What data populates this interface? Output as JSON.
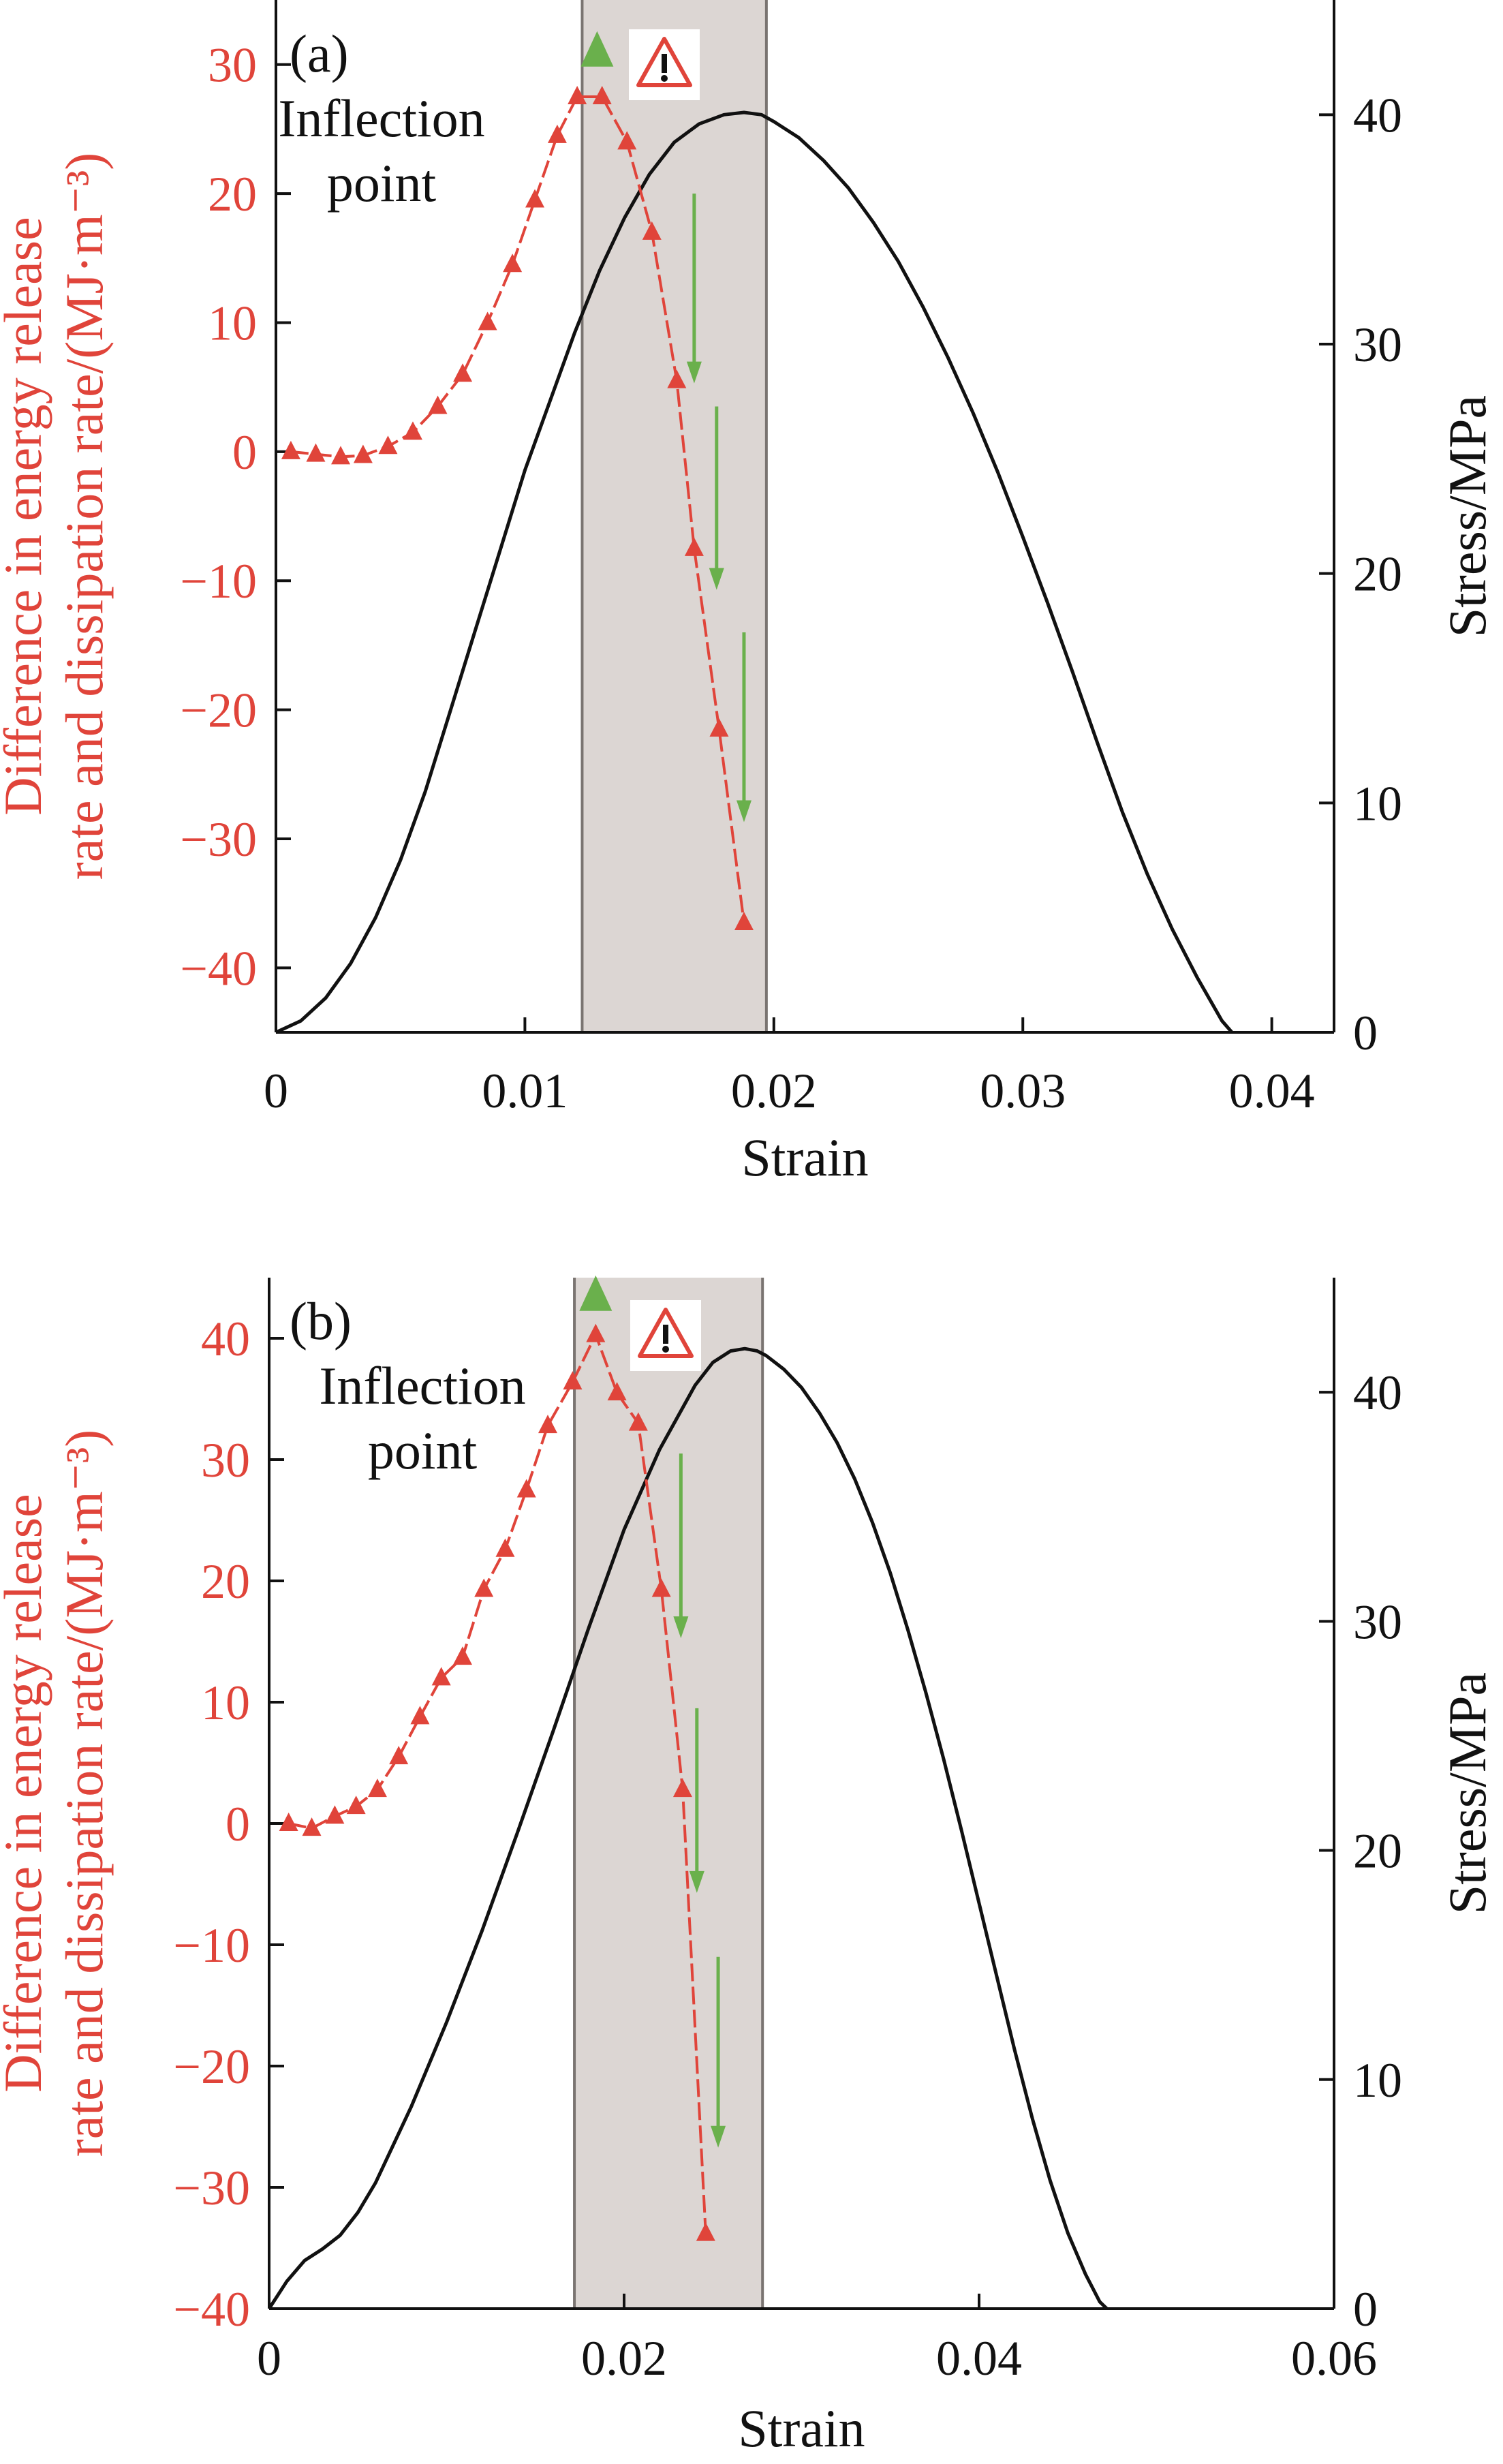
{
  "chart_data": [
    {
      "type": "line",
      "panel_label": "(a)",
      "xlabel": "Strain",
      "ylabel_left_line1": "Difference in energy release",
      "ylabel_left_line2": "rate and dissipation rate/(MJ·m⁻³)",
      "ylabel_right": "Stress/MPa",
      "xlim": [
        0,
        0.0425
      ],
      "ylim_left": [
        -45,
        35
      ],
      "ylim_right": [
        0,
        45
      ],
      "xticks": [
        0,
        0.01,
        0.02,
        0.03,
        0.04
      ],
      "xtick_labels": [
        "0",
        "0.01",
        "0.02",
        "0.03",
        "0.04"
      ],
      "yticks_left": [
        -40,
        -30,
        -20,
        -10,
        0,
        10,
        20,
        30
      ],
      "ytick_labels_left": [
        "−40",
        "−30",
        "−20",
        "−10",
        "0",
        "10",
        "20",
        "30"
      ],
      "yticks_right": [
        0,
        10,
        20,
        30,
        40
      ],
      "ytick_labels_right": [
        "0",
        "10",
        "20",
        "30",
        "40"
      ],
      "shaded_region": [
        0.0123,
        0.0197
      ],
      "annotation_line1": "Inflection",
      "annotation_line2": "point",
      "warning_icon": "warning-triangle-icon",
      "inflection_marker": [
        0.0129,
        31
      ],
      "green_arrows": [
        {
          "x": 0.0168,
          "y_from": 20,
          "y_to": 5.5
        },
        {
          "x": 0.0177,
          "y_from": 3.5,
          "y_to": -10.5
        },
        {
          "x": 0.0188,
          "y_from": -14,
          "y_to": -28.5
        }
      ],
      "series": [
        {
          "name": "Difference in energy release rate and dissipation rate",
          "axis": "left",
          "color": "#e0443a",
          "x": [
            0.0006,
            0.0016,
            0.0026,
            0.0035,
            0.0045,
            0.0055,
            0.0065,
            0.0075,
            0.0085,
            0.0095,
            0.0104,
            0.0113,
            0.0121,
            0.0131,
            0.0141,
            0.0151,
            0.0161,
            0.0168,
            0.0178,
            0.0188
          ],
          "values": [
            0,
            -0.2,
            -0.4,
            -0.3,
            0.4,
            1.5,
            3.5,
            6,
            10,
            14.5,
            19.5,
            24.5,
            27.5,
            27.5,
            24,
            17,
            5.5,
            -7.5,
            -21.5,
            -36.5
          ]
        },
        {
          "name": "Stress",
          "axis": "right",
          "color": "#111111",
          "x": [
            0,
            0.001,
            0.002,
            0.003,
            0.004,
            0.005,
            0.006,
            0.007,
            0.008,
            0.009,
            0.01,
            0.011,
            0.012,
            0.013,
            0.014,
            0.015,
            0.016,
            0.017,
            0.018,
            0.0188,
            0.0195,
            0.02,
            0.021,
            0.022,
            0.023,
            0.024,
            0.025,
            0.026,
            0.027,
            0.028,
            0.029,
            0.03,
            0.031,
            0.032,
            0.033,
            0.034,
            0.035,
            0.036,
            0.037,
            0.038,
            0.0384
          ],
          "values": [
            0,
            0.5,
            1.5,
            3,
            5,
            7.5,
            10.5,
            14,
            17.5,
            21,
            24.5,
            27.5,
            30.5,
            33.2,
            35.5,
            37.4,
            38.8,
            39.6,
            40,
            40.1,
            40,
            39.7,
            39,
            38,
            36.8,
            35.3,
            33.6,
            31.6,
            29.4,
            27,
            24.4,
            21.6,
            18.7,
            15.7,
            12.6,
            9.6,
            6.9,
            4.5,
            2.4,
            0.5,
            0
          ]
        }
      ]
    },
    {
      "type": "line",
      "panel_label": "(b)",
      "xlabel": "Strain",
      "ylabel_left_line1": "Difference in energy release",
      "ylabel_left_line2": "rate and dissipation rate/(MJ·m⁻³)",
      "ylabel_right": "Stress/MPa",
      "xlim": [
        0,
        0.06
      ],
      "ylim_left": [
        -40,
        45
      ],
      "ylim_right": [
        0,
        45
      ],
      "xticks": [
        0,
        0.02,
        0.04,
        0.06
      ],
      "xtick_labels": [
        "0",
        "0.02",
        "0.04",
        "0.06"
      ],
      "yticks_left": [
        -40,
        -30,
        -20,
        -10,
        0,
        10,
        20,
        30,
        40
      ],
      "ytick_labels_left": [
        "−40",
        "−30",
        "−20",
        "−10",
        "0",
        "10",
        "20",
        "30",
        "40"
      ],
      "yticks_right": [
        0,
        10,
        20,
        30,
        40
      ],
      "ytick_labels_right": [
        "0",
        "10",
        "20",
        "30",
        "40"
      ],
      "shaded_region": [
        0.0172,
        0.0278
      ],
      "annotation_line1": "Inflection",
      "annotation_line2": "point",
      "warning_icon": "warning-triangle-icon",
      "inflection_marker": [
        0.0184,
        43.5
      ],
      "green_arrows": [
        {
          "x": 0.0232,
          "y_from": 30.5,
          "y_to": 15.5
        },
        {
          "x": 0.0241,
          "y_from": 9.5,
          "y_to": -5.5
        },
        {
          "x": 0.0253,
          "y_from": -11,
          "y_to": -26.5
        }
      ],
      "series": [
        {
          "name": "Difference in energy release rate and dissipation rate",
          "axis": "left",
          "color": "#e0443a",
          "x": [
            0.0011,
            0.0024,
            0.0037,
            0.0049,
            0.0061,
            0.0073,
            0.0085,
            0.0097,
            0.0109,
            0.0121,
            0.0133,
            0.0145,
            0.0157,
            0.0171,
            0.0184,
            0.0196,
            0.0208,
            0.0221,
            0.0233,
            0.0246
          ],
          "values": [
            0,
            -0.4,
            0.6,
            1.4,
            2.8,
            5.5,
            8.8,
            12,
            13.7,
            19.3,
            22.6,
            27.5,
            32.8,
            36.4,
            40.3,
            35.5,
            33,
            19.3,
            2.8,
            -33.8
          ]
        },
        {
          "name": "Stress",
          "axis": "right",
          "color": "#111111",
          "x": [
            0,
            0.001,
            0.002,
            0.003,
            0.004,
            0.005,
            0.006,
            0.008,
            0.01,
            0.012,
            0.014,
            0.016,
            0.018,
            0.02,
            0.022,
            0.024,
            0.025,
            0.026,
            0.0268,
            0.0275,
            0.028,
            0.029,
            0.03,
            0.031,
            0.032,
            0.033,
            0.034,
            0.035,
            0.036,
            0.037,
            0.038,
            0.039,
            0.04,
            0.041,
            0.042,
            0.043,
            0.044,
            0.045,
            0.046,
            0.0468,
            0.0472
          ],
          "values": [
            0,
            1.2,
            2.1,
            2.6,
            3.2,
            4.2,
            5.5,
            8.8,
            12.5,
            16.5,
            20.8,
            25.2,
            29.7,
            34,
            37.5,
            40.3,
            41.3,
            41.8,
            41.9,
            41.8,
            41.6,
            41,
            40.2,
            39.1,
            37.8,
            36.2,
            34.3,
            32.1,
            29.6,
            26.9,
            24,
            20.9,
            17.7,
            14.5,
            11.3,
            8.3,
            5.6,
            3.3,
            1.5,
            0.3,
            0
          ]
        }
      ]
    }
  ]
}
